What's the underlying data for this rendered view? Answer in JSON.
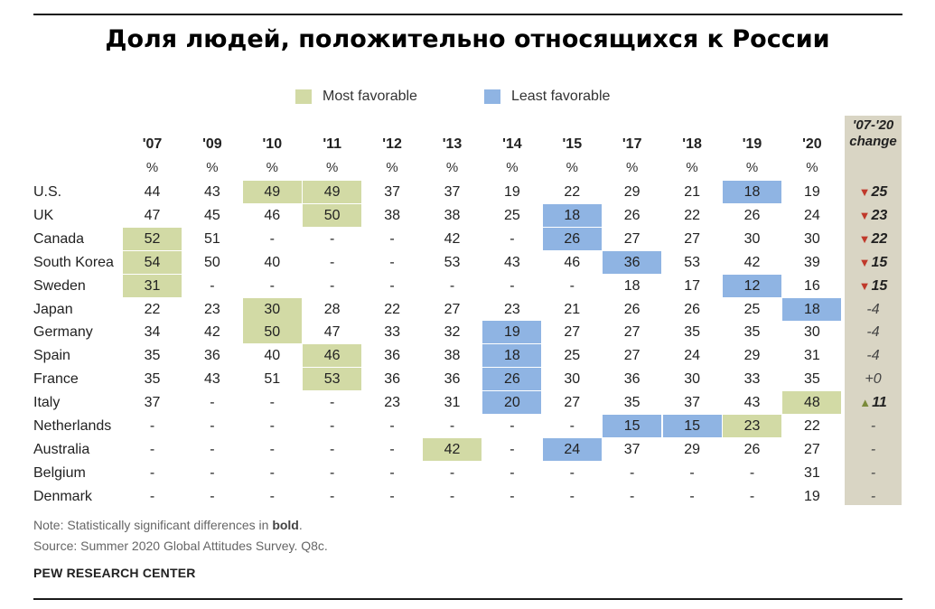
{
  "chart_data": {
    "type": "table",
    "title": "Доля людей, положительно относящихся к России",
    "legend": {
      "most": {
        "label": "Most favorable",
        "color": "#d2daa5"
      },
      "least": {
        "label": "Least favorable",
        "color": "#8fb4e3"
      }
    },
    "columns": [
      "'07",
      "'09",
      "'10",
      "'11",
      "'12",
      "'13",
      "'14",
      "'15",
      "'17",
      "'18",
      "'19",
      "'20"
    ],
    "unit": "%",
    "change_header": "'07-'20 change",
    "rows": [
      {
        "country": "U.S.",
        "values": [
          "44",
          "43",
          "49",
          "49",
          "37",
          "37",
          "19",
          "22",
          "29",
          "21",
          "18",
          "19"
        ],
        "most": [
          2,
          3
        ],
        "least": [
          10
        ],
        "change": "25",
        "dir": "down",
        "bold": true
      },
      {
        "country": "UK",
        "values": [
          "47",
          "45",
          "46",
          "50",
          "38",
          "38",
          "25",
          "18",
          "26",
          "22",
          "26",
          "24"
        ],
        "most": [
          3
        ],
        "least": [
          7
        ],
        "change": "23",
        "dir": "down",
        "bold": true
      },
      {
        "country": "Canada",
        "values": [
          "52",
          "51",
          "-",
          "-",
          "-",
          "42",
          "-",
          "26",
          "27",
          "27",
          "30",
          "30"
        ],
        "most": [
          0
        ],
        "least": [
          7
        ],
        "change": "22",
        "dir": "down",
        "bold": true
      },
      {
        "country": "South Korea",
        "values": [
          "54",
          "50",
          "40",
          "-",
          "-",
          "53",
          "43",
          "46",
          "36",
          "53",
          "42",
          "39"
        ],
        "most": [
          0
        ],
        "least": [
          8
        ],
        "change": "15",
        "dir": "down",
        "bold": true
      },
      {
        "country": "Sweden",
        "values": [
          "31",
          "-",
          "-",
          "-",
          "-",
          "-",
          "-",
          "-",
          "18",
          "17",
          "12",
          "16"
        ],
        "most": [
          0
        ],
        "least": [
          10
        ],
        "change": "15",
        "dir": "down",
        "bold": true
      },
      {
        "country": "Japan",
        "values": [
          "22",
          "23",
          "30",
          "28",
          "22",
          "27",
          "23",
          "21",
          "26",
          "26",
          "25",
          "18"
        ],
        "most": [
          2
        ],
        "least": [
          11
        ],
        "change": "-4",
        "dir": "none",
        "bold": false
      },
      {
        "country": "Germany",
        "values": [
          "34",
          "42",
          "50",
          "47",
          "33",
          "32",
          "19",
          "27",
          "27",
          "35",
          "35",
          "30"
        ],
        "most": [
          2
        ],
        "least": [
          6
        ],
        "change": "-4",
        "dir": "none",
        "bold": false
      },
      {
        "country": "Spain",
        "values": [
          "35",
          "36",
          "40",
          "46",
          "36",
          "38",
          "18",
          "25",
          "27",
          "24",
          "29",
          "31"
        ],
        "most": [
          3
        ],
        "least": [
          6
        ],
        "change": "-4",
        "dir": "none",
        "bold": false
      },
      {
        "country": "France",
        "values": [
          "35",
          "43",
          "51",
          "53",
          "36",
          "36",
          "26",
          "30",
          "36",
          "30",
          "33",
          "35"
        ],
        "most": [
          3
        ],
        "least": [
          6
        ],
        "change": "+0",
        "dir": "none",
        "bold": false
      },
      {
        "country": "Italy",
        "values": [
          "37",
          "-",
          "-",
          "-",
          "23",
          "31",
          "20",
          "27",
          "35",
          "37",
          "43",
          "48"
        ],
        "most": [
          11
        ],
        "least": [
          6
        ],
        "change": "11",
        "dir": "up",
        "bold": true
      },
      {
        "country": "Netherlands",
        "values": [
          "-",
          "-",
          "-",
          "-",
          "-",
          "-",
          "-",
          "-",
          "15",
          "15",
          "23",
          "22"
        ],
        "most": [
          10
        ],
        "least": [
          8,
          9
        ],
        "change": "-",
        "dir": "none",
        "bold": false
      },
      {
        "country": "Australia",
        "values": [
          "-",
          "-",
          "-",
          "-",
          "-",
          "42",
          "-",
          "24",
          "37",
          "29",
          "26",
          "27"
        ],
        "most": [
          5
        ],
        "least": [
          7
        ],
        "change": "-",
        "dir": "none",
        "bold": false
      },
      {
        "country": "Belgium",
        "values": [
          "-",
          "-",
          "-",
          "-",
          "-",
          "-",
          "-",
          "-",
          "-",
          "-",
          "-",
          "31"
        ],
        "most": [],
        "least": [],
        "change": "-",
        "dir": "none",
        "bold": false
      },
      {
        "country": "Denmark",
        "values": [
          "-",
          "-",
          "-",
          "-",
          "-",
          "-",
          "-",
          "-",
          "-",
          "-",
          "-",
          "19"
        ],
        "most": [],
        "least": [],
        "change": "-",
        "dir": "none",
        "bold": false
      }
    ],
    "colors": {
      "down": "#c0392b",
      "up": "#7a8a3a",
      "change_bg": "#d9d5c4"
    }
  },
  "notes": {
    "note_prefix": "Note: Statistically significant differences in ",
    "note_bold": "bold",
    "note_suffix": ".",
    "source": "Source: Summer 2020 Global Attitudes Survey. Q8c.",
    "org": "PEW RESEARCH CENTER"
  }
}
